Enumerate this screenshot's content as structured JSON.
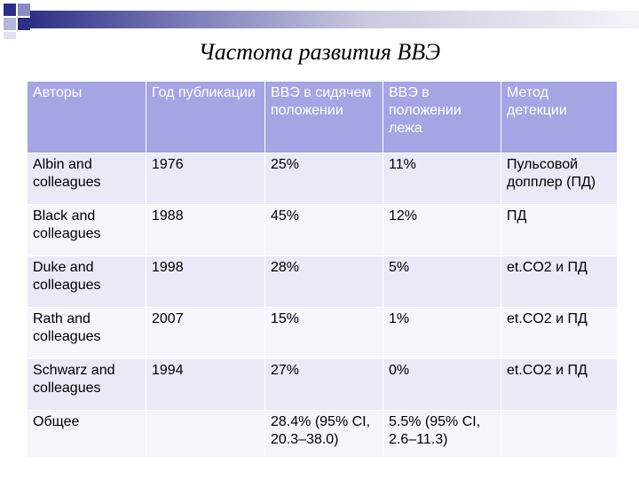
{
  "title": "Частота развития ВВЭ",
  "colors": {
    "header_bg": "#a5a5e3",
    "row_odd_bg": "#e9e9f8",
    "row_even_bg": "#f5f5fc",
    "deco_dark": "#2f2f86"
  },
  "table": {
    "headers": [
      "Авторы",
      "Год публикации",
      "ВВЭ в сидячем положении",
      "ВВЭ в положении лежа",
      "Метод детекции"
    ],
    "rows": [
      [
        "Albin and colleagues",
        "1976",
        "25%",
        "11%",
        "Пульсовой допплер (ПД)"
      ],
      [
        "Black and colleagues",
        "1988",
        "45%",
        "12%",
        "ПД"
      ],
      [
        "Duke and colleagues",
        "1998",
        "28%",
        "5%",
        "et.CO2 и ПД"
      ],
      [
        "Rath and colleagues",
        "2007",
        "15%",
        "1%",
        "et.CO2 и ПД"
      ],
      [
        "Schwarz and colleagues",
        "1994",
        "27%",
        "0%",
        "et.CO2 и ПД"
      ],
      [
        "Общее",
        "",
        "28.4% (95% CI, 20.3–38.0)",
        "5.5% (95% CI, 2.6–11.3)",
        ""
      ]
    ]
  }
}
